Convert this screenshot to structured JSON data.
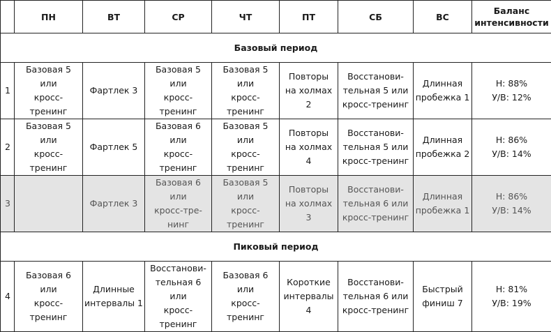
{
  "headers": [
    "",
    "ПН",
    "ВТ",
    "СР",
    "ЧТ",
    "ПТ",
    "СБ",
    "ВС",
    "Баланс\nинтенсивности"
  ],
  "sections": [
    {
      "title": "Базовый период",
      "rows": [
        {
          "num": "1",
          "muted": false,
          "cells": [
            "Базовая 5 или\nкросс-тренинг",
            "Фартлек 3",
            "Базовая 5 или\nкросс-тренинг",
            "Базовая 5 или\nкросс-тренинг",
            "Повторы\nна холмах 2",
            "Восстанови-\nтельная 5 или\nкросс-тренинг",
            "Длинная\nпробежка 1",
            "Н: 88%\nУ/В: 12%"
          ]
        },
        {
          "num": "2",
          "muted": false,
          "cells": [
            "Базовая 5 или\nкросс-тренинг",
            "Фартлек 5",
            "Базовая 6 или\nкросс-тренинг",
            "Базовая 5 или\nкросс-тренинг",
            "Повторы\nна холмах 4",
            "Восстанови-\nтельная 5 или\nкросс-тренинг",
            "Длинная\nпробежка 2",
            "Н: 86%\nУ/В: 14%"
          ]
        },
        {
          "num": "3",
          "muted": true,
          "cells": [
            "",
            "Фартлек 3",
            "Базовая 6 или\nкросс-тре-\nнинг",
            "Базовая 5 или\nкросс-тренинг",
            "Повторы\nна холмах 3",
            "Восстанови-\nтельная 6 или\nкросс-тренинг",
            "Длинная\nпробежка 1",
            "Н: 86%\nУ/В: 14%"
          ]
        }
      ]
    },
    {
      "title": "Пиковый период",
      "rows": [
        {
          "num": "4",
          "muted": false,
          "cells": [
            "Базовая 6 или\nкросс-тренинг",
            "Длинные\nинтервалы 1",
            "Восстанови-\nтельная 6 или\nкросс-тренинг",
            "Базовая 6 или\nкросс-тренинг",
            "Короткие\nинтервалы 4",
            "Восстанови-\nтельная 6 или\nкросс-тренинг",
            "Быстрый\nфиниш 7",
            "Н: 81%\nУ/В: 19%"
          ]
        }
      ]
    }
  ]
}
